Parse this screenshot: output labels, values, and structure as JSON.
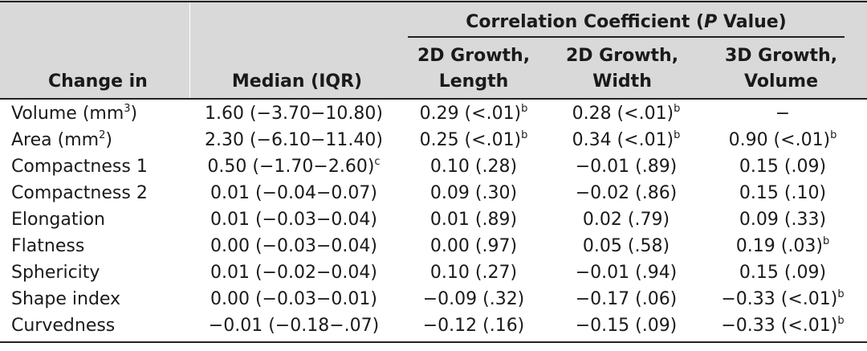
{
  "table": {
    "spanner": {
      "prefix": "Correlation Coefficient (",
      "italic": "P",
      "suffix": " Value)"
    },
    "headers": {
      "change_in": "Change in",
      "median": "Median (IQR)",
      "col2_line1": "2D Growth,",
      "col2_line2": "Length",
      "col3_line1": "2D Growth,",
      "col3_line2": "Width",
      "col4_line1": "3D Growth,",
      "col4_line2": "Volume"
    },
    "rows": [
      {
        "label": "Volume (mm",
        "label_sup": "3",
        "label_end": ")",
        "median": "1.60 (−3.70−10.80)",
        "median_sup": "",
        "len": "0.29 (<.01)",
        "len_sup": "b",
        "wid": "0.28 (<.01)",
        "wid_sup": "b",
        "vol": "−",
        "vol_sup": ""
      },
      {
        "label": "Area (mm",
        "label_sup": "2",
        "label_end": ")",
        "median": "2.30 (−6.10−11.40)",
        "median_sup": "",
        "len": "0.25 (<.01)",
        "len_sup": "b",
        "wid": "0.34 (<.01)",
        "wid_sup": "b",
        "vol": "0.90 (<.01)",
        "vol_sup": "b"
      },
      {
        "label": "Compactness 1",
        "label_sup": "",
        "label_end": "",
        "median": "0.50 (−1.70−2.60)",
        "median_sup": "c",
        "len": "0.10 (.28)",
        "len_sup": "",
        "wid": "−0.01 (.89)",
        "wid_sup": "",
        "vol": "0.15 (.09)",
        "vol_sup": ""
      },
      {
        "label": "Compactness 2",
        "label_sup": "",
        "label_end": "",
        "median": "0.01 (−0.04−0.07)",
        "median_sup": "",
        "len": "0.09 (.30)",
        "len_sup": "",
        "wid": "−0.02 (.86)",
        "wid_sup": "",
        "vol": "0.15 (.10)",
        "vol_sup": ""
      },
      {
        "label": "Elongation",
        "label_sup": "",
        "label_end": "",
        "median": "0.01 (−0.03−0.04)",
        "median_sup": "",
        "len": "0.01 (.89)",
        "len_sup": "",
        "wid": "0.02 (.79)",
        "wid_sup": "",
        "vol": "0.09 (.33)",
        "vol_sup": ""
      },
      {
        "label": "Flatness",
        "label_sup": "",
        "label_end": "",
        "median": "0.00 (−0.03−0.04)",
        "median_sup": "",
        "len": "0.00 (.97)",
        "len_sup": "",
        "wid": "0.05 (.58)",
        "wid_sup": "",
        "vol": "0.19 (.03)",
        "vol_sup": "b"
      },
      {
        "label": "Sphericity",
        "label_sup": "",
        "label_end": "",
        "median": "0.01 (−0.02−0.04)",
        "median_sup": "",
        "len": "0.10 (.27)",
        "len_sup": "",
        "wid": "−0.01 (.94)",
        "wid_sup": "",
        "vol": "0.15 (.09)",
        "vol_sup": ""
      },
      {
        "label": "Shape index",
        "label_sup": "",
        "label_end": "",
        "median": "0.00 (−0.03−0.01)",
        "median_sup": "",
        "len": "−0.09 (.32)",
        "len_sup": "",
        "wid": "−0.17 (.06)",
        "wid_sup": "",
        "vol": "−0.33 (<.01)",
        "vol_sup": "b"
      },
      {
        "label": "Curvedness",
        "label_sup": "",
        "label_end": "",
        "median": "−0.01 (−0.18−.07)",
        "median_sup": "",
        "len": "−0.12 (.16)",
        "len_sup": "",
        "wid": "−0.15 (.09)",
        "wid_sup": "",
        "vol": "−0.33 (<.01)",
        "vol_sup": "b"
      }
    ]
  }
}
